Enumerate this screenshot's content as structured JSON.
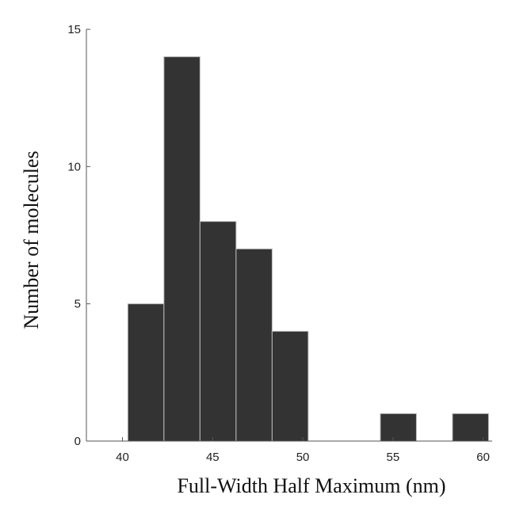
{
  "chart_data": {
    "type": "bar",
    "title": "",
    "xlabel": "Full-Width Half Maximum (nm)",
    "ylabel": "Number of molecules",
    "bins": [
      {
        "start": 40.3,
        "end": 42.3,
        "count": 5
      },
      {
        "start": 42.3,
        "end": 44.3,
        "count": 14
      },
      {
        "start": 44.3,
        "end": 46.3,
        "count": 8
      },
      {
        "start": 46.3,
        "end": 48.3,
        "count": 7
      },
      {
        "start": 48.3,
        "end": 50.3,
        "count": 4
      },
      {
        "start": 50.3,
        "end": 52.3,
        "count": 0
      },
      {
        "start": 52.3,
        "end": 54.3,
        "count": 0
      },
      {
        "start": 54.3,
        "end": 56.3,
        "count": 1
      },
      {
        "start": 56.3,
        "end": 58.3,
        "count": 0
      },
      {
        "start": 58.3,
        "end": 60.3,
        "count": 1
      }
    ],
    "xlim": [
      38,
      60.5
    ],
    "ylim": [
      0,
      15
    ],
    "xticks": [
      40,
      45,
      50,
      55,
      60
    ],
    "yticks": [
      0,
      5,
      10,
      15
    ],
    "grid": false,
    "legend": "none",
    "bar_color": "#333333",
    "bar_edge_color": "#bbbbbb"
  }
}
